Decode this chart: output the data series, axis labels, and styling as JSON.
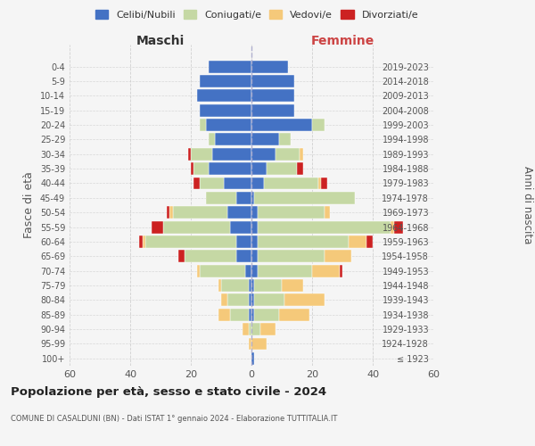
{
  "age_groups": [
    "100+",
    "95-99",
    "90-94",
    "85-89",
    "80-84",
    "75-79",
    "70-74",
    "65-69",
    "60-64",
    "55-59",
    "50-54",
    "45-49",
    "40-44",
    "35-39",
    "30-34",
    "25-29",
    "20-24",
    "15-19",
    "10-14",
    "5-9",
    "0-4"
  ],
  "birth_years": [
    "≤ 1923",
    "1924-1928",
    "1929-1933",
    "1934-1938",
    "1939-1943",
    "1944-1948",
    "1949-1953",
    "1954-1958",
    "1959-1963",
    "1964-1968",
    "1969-1973",
    "1974-1978",
    "1979-1983",
    "1984-1988",
    "1989-1993",
    "1994-1998",
    "1999-2003",
    "2004-2008",
    "2009-2013",
    "2014-2018",
    "2019-2023"
  ],
  "colors": {
    "celibi": "#4472C4",
    "coniugati": "#c5d8a4",
    "vedovi": "#f5c97a",
    "divorziati": "#cc2222"
  },
  "maschi": {
    "celibi": [
      0,
      0,
      0,
      1,
      1,
      1,
      2,
      5,
      5,
      7,
      8,
      5,
      9,
      14,
      13,
      12,
      15,
      17,
      18,
      17,
      14
    ],
    "coniugati": [
      0,
      0,
      1,
      6,
      7,
      9,
      15,
      17,
      30,
      22,
      18,
      10,
      8,
      5,
      7,
      2,
      2,
      0,
      0,
      0,
      0
    ],
    "vedovi": [
      0,
      1,
      2,
      4,
      2,
      1,
      1,
      0,
      1,
      0,
      1,
      0,
      0,
      0,
      0,
      0,
      0,
      0,
      0,
      0,
      0
    ],
    "divorziati": [
      0,
      0,
      0,
      0,
      0,
      0,
      0,
      2,
      1,
      4,
      1,
      0,
      2,
      1,
      1,
      0,
      0,
      0,
      0,
      0,
      0
    ]
  },
  "femmine": {
    "celibi": [
      1,
      0,
      0,
      1,
      1,
      1,
      2,
      2,
      2,
      2,
      2,
      1,
      4,
      5,
      8,
      9,
      20,
      14,
      14,
      14,
      12
    ],
    "coniugati": [
      0,
      0,
      3,
      8,
      10,
      9,
      18,
      22,
      30,
      44,
      22,
      33,
      18,
      10,
      8,
      4,
      4,
      0,
      0,
      0,
      0
    ],
    "vedovi": [
      0,
      5,
      5,
      10,
      13,
      7,
      9,
      9,
      6,
      1,
      2,
      0,
      1,
      0,
      1,
      0,
      0,
      0,
      0,
      0,
      0
    ],
    "divorziati": [
      0,
      0,
      0,
      0,
      0,
      0,
      1,
      0,
      2,
      3,
      0,
      0,
      2,
      2,
      0,
      0,
      0,
      0,
      0,
      0,
      0
    ]
  },
  "xlim": 60,
  "xlabel_left": "Maschi",
  "xlabel_right": "Femmine",
  "ylabel_left": "Fasce di età",
  "ylabel_right": "Anni di nascita",
  "title": "Popolazione per età, sesso e stato civile - 2024",
  "subtitle": "COMUNE DI CASALDUNI (BN) - Dati ISTAT 1° gennaio 2024 - Elaborazione TUTTITALIA.IT",
  "legend_labels": [
    "Celibi/Nubili",
    "Coniugati/e",
    "Vedovi/e",
    "Divorziati/e"
  ],
  "bg_color": "#f5f5f5",
  "bar_height": 0.85
}
